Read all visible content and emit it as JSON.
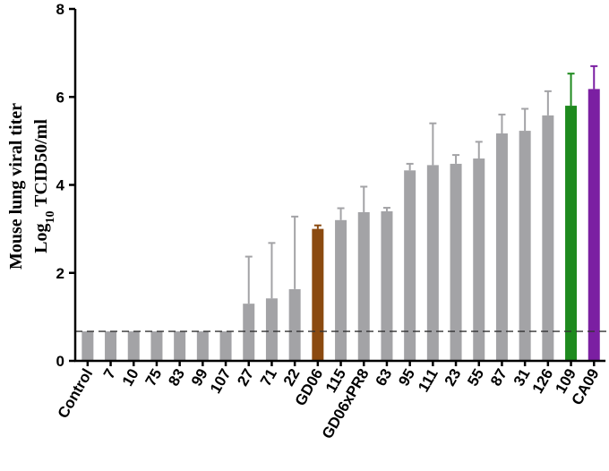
{
  "chart_data": {
    "type": "bar",
    "ylabel_line1": "Mouse lung viral titer",
    "ylabel_line2_prefix": "Log",
    "ylabel_line2_sub": "10",
    "ylabel_line2_suffix": " TCID50/ml",
    "ylim": [
      0,
      8
    ],
    "yticks": [
      "0",
      "2",
      "4",
      "6",
      "8"
    ],
    "reference_line": 0.67,
    "grid": false,
    "categories": [
      "Control",
      "7",
      "10",
      "75",
      "83",
      "99",
      "107",
      "27",
      "71",
      "22",
      "GD06",
      "115",
      "GD06xPR8",
      "63",
      "95",
      "111",
      "23",
      "55",
      "87",
      "31",
      "126",
      "109",
      "CA09"
    ],
    "values": [
      0.67,
      0.67,
      0.67,
      0.67,
      0.67,
      0.67,
      0.67,
      1.3,
      1.42,
      1.63,
      3.0,
      3.2,
      3.38,
      3.4,
      4.33,
      4.45,
      4.48,
      4.6,
      5.17,
      5.23,
      5.58,
      5.8,
      6.18
    ],
    "errors": [
      0,
      0,
      0,
      0,
      0,
      0,
      0,
      1.07,
      1.26,
      1.65,
      0.08,
      0.27,
      0.58,
      0.08,
      0.15,
      0.95,
      0.2,
      0.38,
      0.43,
      0.5,
      0.55,
      0.73,
      0.52
    ],
    "colors": [
      "#a3a3a6",
      "#a3a3a6",
      "#a3a3a6",
      "#a3a3a6",
      "#a3a3a6",
      "#a3a3a6",
      "#a3a3a6",
      "#a3a3a6",
      "#a3a3a6",
      "#a3a3a6",
      "#8b4a10",
      "#a3a3a6",
      "#a3a3a6",
      "#a3a3a6",
      "#a3a3a6",
      "#a3a3a6",
      "#a3a3a6",
      "#a3a3a6",
      "#a3a3a6",
      "#a3a3a6",
      "#a3a3a6",
      "#1e8a1e",
      "#7b1fa2"
    ]
  }
}
